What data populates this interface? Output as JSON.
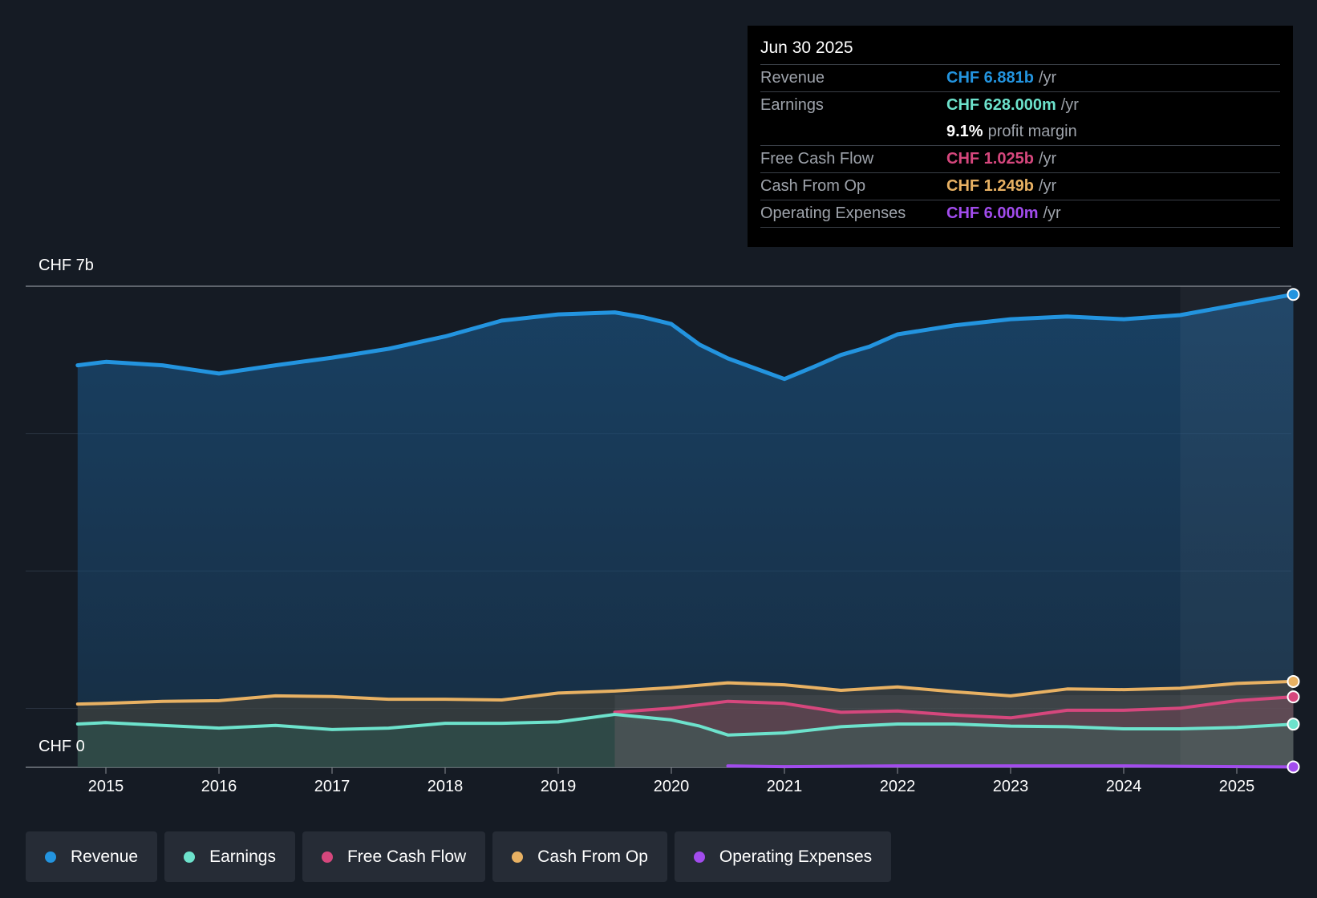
{
  "tooltip": {
    "date": "Jun 30 2025",
    "revenue_label": "Revenue",
    "revenue_value": "CHF 6.881b",
    "revenue_unit": "/yr",
    "earnings_label": "Earnings",
    "earnings_value": "CHF 628.000m",
    "earnings_unit": "/yr",
    "margin_value": "9.1%",
    "margin_label": "profit margin",
    "fcf_label": "Free Cash Flow",
    "fcf_value": "CHF 1.025b",
    "fcf_unit": "/yr",
    "cfo_label": "Cash From Op",
    "cfo_value": "CHF 1.249b",
    "cfo_unit": "/yr",
    "opex_label": "Operating Expenses",
    "opex_value": "CHF 6.000m",
    "opex_unit": "/yr"
  },
  "legend": {
    "revenue": "Revenue",
    "earnings": "Earnings",
    "fcf": "Free Cash Flow",
    "cfo": "Cash From Op",
    "opex": "Operating Expenses"
  },
  "colors": {
    "revenue": "#2394df",
    "earnings": "#6de2cc",
    "fcf": "#d6477d",
    "cfo": "#e8b163",
    "opex": "#a24ced"
  },
  "chart_data": {
    "type": "area",
    "title": "",
    "xlabel": "",
    "ylabel": "",
    "y_top_label": "CHF 7b",
    "y_bottom_label": "CHF 0",
    "ylim": [
      0,
      7
    ],
    "xlim": [
      2014.55,
      2025.5
    ],
    "x_ticks": [
      "2015",
      "2016",
      "2017",
      "2018",
      "2019",
      "2020",
      "2021",
      "2022",
      "2023",
      "2024",
      "2025"
    ],
    "series": [
      {
        "name": "Revenue",
        "key": "revenue",
        "unit": "CHF b",
        "points": [
          [
            2014.75,
            5.85
          ],
          [
            2015.0,
            5.9
          ],
          [
            2015.5,
            5.85
          ],
          [
            2016.0,
            5.73
          ],
          [
            2016.5,
            5.85
          ],
          [
            2017.0,
            5.96
          ],
          [
            2017.5,
            6.09
          ],
          [
            2018.0,
            6.27
          ],
          [
            2018.5,
            6.5
          ],
          [
            2019.0,
            6.59
          ],
          [
            2019.5,
            6.62
          ],
          [
            2019.75,
            6.55
          ],
          [
            2020.0,
            6.45
          ],
          [
            2020.25,
            6.15
          ],
          [
            2020.5,
            5.95
          ],
          [
            2020.75,
            5.8
          ],
          [
            2021.0,
            5.65
          ],
          [
            2021.25,
            5.82
          ],
          [
            2021.5,
            6.0
          ],
          [
            2021.75,
            6.12
          ],
          [
            2022.0,
            6.3
          ],
          [
            2022.5,
            6.43
          ],
          [
            2023.0,
            6.52
          ],
          [
            2023.5,
            6.56
          ],
          [
            2024.0,
            6.52
          ],
          [
            2024.5,
            6.58
          ],
          [
            2025.0,
            6.73
          ],
          [
            2025.5,
            6.881
          ]
        ]
      },
      {
        "name": "Earnings",
        "key": "earnings",
        "unit": "CHF b",
        "points": [
          [
            2014.75,
            0.63
          ],
          [
            2015.0,
            0.65
          ],
          [
            2015.5,
            0.61
          ],
          [
            2016.0,
            0.57
          ],
          [
            2016.5,
            0.61
          ],
          [
            2017.0,
            0.55
          ],
          [
            2017.5,
            0.57
          ],
          [
            2018.0,
            0.64
          ],
          [
            2018.5,
            0.64
          ],
          [
            2019.0,
            0.66
          ],
          [
            2019.5,
            0.77
          ],
          [
            2020.0,
            0.69
          ],
          [
            2020.25,
            0.6
          ],
          [
            2020.5,
            0.47
          ],
          [
            2021.0,
            0.5
          ],
          [
            2021.5,
            0.59
          ],
          [
            2022.0,
            0.63
          ],
          [
            2022.5,
            0.63
          ],
          [
            2023.0,
            0.6
          ],
          [
            2023.5,
            0.59
          ],
          [
            2024.0,
            0.56
          ],
          [
            2024.5,
            0.56
          ],
          [
            2025.0,
            0.58
          ],
          [
            2025.5,
            0.628
          ]
        ]
      },
      {
        "name": "Free Cash Flow",
        "key": "fcf",
        "unit": "CHF b",
        "points": [
          [
            2019.5,
            0.8
          ],
          [
            2020.0,
            0.86
          ],
          [
            2020.5,
            0.96
          ],
          [
            2021.0,
            0.93
          ],
          [
            2021.5,
            0.8
          ],
          [
            2022.0,
            0.82
          ],
          [
            2022.5,
            0.76
          ],
          [
            2023.0,
            0.72
          ],
          [
            2023.5,
            0.83
          ],
          [
            2024.0,
            0.83
          ],
          [
            2024.5,
            0.86
          ],
          [
            2025.0,
            0.97
          ],
          [
            2025.5,
            1.025
          ]
        ]
      },
      {
        "name": "Cash From Op",
        "key": "cfo",
        "unit": "CHF b",
        "points": [
          [
            2014.75,
            0.92
          ],
          [
            2015.0,
            0.93
          ],
          [
            2015.5,
            0.96
          ],
          [
            2016.0,
            0.97
          ],
          [
            2016.5,
            1.04
          ],
          [
            2017.0,
            1.03
          ],
          [
            2017.5,
            0.99
          ],
          [
            2018.0,
            0.99
          ],
          [
            2018.5,
            0.98
          ],
          [
            2019.0,
            1.08
          ],
          [
            2019.5,
            1.11
          ],
          [
            2020.0,
            1.16
          ],
          [
            2020.5,
            1.23
          ],
          [
            2021.0,
            1.2
          ],
          [
            2021.5,
            1.12
          ],
          [
            2022.0,
            1.17
          ],
          [
            2022.5,
            1.1
          ],
          [
            2023.0,
            1.04
          ],
          [
            2023.5,
            1.14
          ],
          [
            2024.0,
            1.13
          ],
          [
            2024.5,
            1.15
          ],
          [
            2025.0,
            1.22
          ],
          [
            2025.5,
            1.249
          ]
        ]
      },
      {
        "name": "Operating Expenses",
        "key": "opex",
        "unit": "CHF b",
        "points": [
          [
            2020.5,
            0.02
          ],
          [
            2021.0,
            0.01
          ],
          [
            2022.0,
            0.02
          ],
          [
            2023.0,
            0.02
          ],
          [
            2024.0,
            0.02
          ],
          [
            2025.5,
            0.006
          ]
        ]
      }
    ],
    "forecast_start_x": 2024.5,
    "highlight_start_x": 2019.5
  }
}
